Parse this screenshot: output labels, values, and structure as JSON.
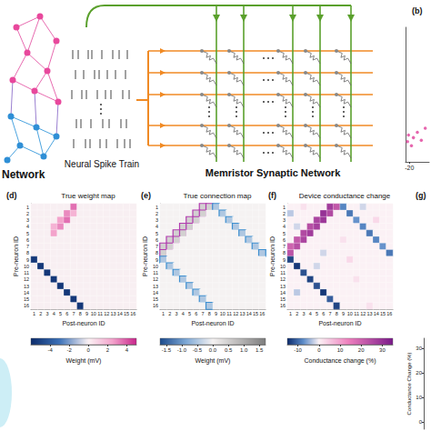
{
  "diagram": {
    "network_label": "Network",
    "spike_label": "Neural Spike Train",
    "crossbar_label": "Memristor Synaptic Network"
  },
  "chart_data": [
    {
      "type": "scatter",
      "panel": "(b)",
      "x": [
        -21,
        -20.5,
        -19,
        -18,
        -16,
        -14,
        -12
      ],
      "values": [
        0.15,
        0.2,
        0.12,
        0.18,
        0.22,
        0.16,
        0.25
      ],
      "color": "#e0409a",
      "xlim": [
        -22,
        -10
      ],
      "xticks": [
        -20
      ],
      "ylim": [
        0,
        1
      ],
      "tick_labels": "x"
    },
    {
      "type": "heatmap",
      "panel": "(d)",
      "title": "True weight map",
      "xlabel": "Post-neuron ID",
      "ylabel": "Pre-neuron ID",
      "x": [
        1,
        2,
        3,
        4,
        5,
        6,
        7,
        8,
        9,
        10,
        11,
        12,
        13,
        14,
        15,
        16
      ],
      "y": [
        1,
        2,
        3,
        4,
        5,
        6,
        7,
        8,
        9,
        10,
        11,
        12,
        13,
        14,
        15,
        16
      ],
      "values": [
        [
          0,
          0,
          0,
          0,
          0,
          0,
          3.5,
          0,
          0,
          0,
          0,
          0,
          0,
          0,
          0,
          0
        ],
        [
          0,
          0,
          0,
          0,
          0,
          3,
          2,
          0,
          0,
          0,
          0,
          0,
          0,
          0,
          0,
          0
        ],
        [
          0,
          0,
          0,
          0,
          2.5,
          3.5,
          0,
          0,
          0,
          0,
          0,
          0,
          0,
          0,
          0,
          0
        ],
        [
          0,
          0,
          0,
          2,
          3,
          0,
          0,
          0,
          0,
          0,
          0,
          0,
          0,
          0,
          0,
          0
        ],
        [
          0,
          0,
          0,
          2.5,
          0,
          0,
          0,
          0,
          0,
          0,
          0,
          0,
          0,
          0,
          0,
          0
        ],
        [
          0,
          0,
          0,
          0,
          0,
          0,
          0,
          0,
          0,
          0,
          0,
          0,
          0,
          0,
          0,
          0
        ],
        [
          0,
          0,
          0,
          0,
          0,
          0,
          0,
          0,
          0,
          0,
          0,
          0,
          0,
          0,
          0,
          0
        ],
        [
          0,
          0,
          0,
          0,
          0,
          0,
          0,
          0,
          0,
          0,
          0,
          0,
          0,
          0,
          0,
          0
        ],
        [
          -5.5,
          0,
          0,
          0,
          0,
          0,
          0,
          0,
          0,
          0,
          0,
          0,
          0,
          0,
          0,
          0
        ],
        [
          0,
          -5.5,
          0,
          0,
          0,
          0,
          0,
          0,
          0,
          0,
          0,
          0,
          0,
          0,
          0,
          0
        ],
        [
          0,
          0,
          -5.5,
          0,
          0,
          0,
          0,
          0,
          0,
          0,
          0,
          0,
          0,
          0,
          0,
          0
        ],
        [
          0,
          0,
          0,
          -5.5,
          0,
          0,
          0,
          0,
          0,
          0,
          0,
          0,
          0,
          0,
          0,
          0
        ],
        [
          0,
          0,
          0,
          0,
          -5.5,
          0,
          0,
          0,
          0,
          0,
          0,
          0,
          0,
          0,
          0,
          0
        ],
        [
          0,
          0,
          0,
          0,
          0,
          -5.5,
          0,
          0,
          0,
          0,
          0,
          0,
          0,
          0,
          0,
          0
        ],
        [
          0,
          0,
          0,
          0,
          0,
          0,
          -5.5,
          0,
          0,
          0,
          0,
          0,
          0,
          0,
          0,
          0
        ],
        [
          0,
          0,
          0,
          0,
          0,
          0,
          0,
          -5.5,
          0,
          0,
          0,
          0,
          0,
          0,
          0,
          0
        ]
      ],
      "colorbar_label": "Weight (mV)",
      "colorbar_lim": [
        -6,
        5
      ],
      "colorbar_ticks": [
        -4,
        -2,
        0,
        2,
        4
      ]
    },
    {
      "type": "heatmap",
      "panel": "(e)",
      "title": "True connection map",
      "xlabel": "Post-neuron ID",
      "ylabel": "Pre-neuron ID",
      "x": [
        1,
        2,
        3,
        4,
        5,
        6,
        7,
        8,
        9,
        10,
        11,
        12,
        13,
        14,
        15,
        16
      ],
      "y": [
        1,
        2,
        3,
        4,
        5,
        6,
        7,
        8,
        9,
        10,
        11,
        12,
        13,
        14,
        15,
        16
      ],
      "values": [
        [
          0,
          0,
          0,
          0,
          0,
          0,
          0.5,
          0.5,
          -0.5,
          0,
          0,
          0,
          0,
          0,
          0,
          0
        ],
        [
          0,
          0,
          0,
          0,
          0,
          0.5,
          0.5,
          0,
          0,
          -0.5,
          0,
          0,
          0,
          0,
          0,
          0
        ],
        [
          0,
          0,
          0,
          0,
          0.5,
          0.5,
          0,
          0,
          0,
          0,
          -0.5,
          0,
          0,
          0,
          0,
          0
        ],
        [
          0,
          0,
          0,
          0.5,
          0.5,
          0,
          0,
          0,
          0,
          0,
          0,
          -0.5,
          0,
          0,
          0,
          0
        ],
        [
          0,
          0,
          0.5,
          0.5,
          0,
          0,
          0,
          0,
          0,
          0,
          0,
          0,
          -0.5,
          0,
          0,
          0
        ],
        [
          0,
          0.5,
          0.5,
          0,
          0,
          0,
          0,
          0,
          0,
          0,
          0,
          0,
          0,
          -0.5,
          0,
          0
        ],
        [
          0.5,
          0.5,
          0,
          0,
          0,
          0,
          0,
          0,
          0,
          0,
          0,
          0,
          0,
          0,
          -0.5,
          0
        ],
        [
          0.5,
          0,
          0,
          0,
          0,
          0,
          0,
          0,
          0,
          0,
          0,
          0,
          0,
          0,
          0,
          -0.5
        ],
        [
          -0.5,
          0,
          0,
          0,
          0,
          0,
          0,
          0,
          0,
          0,
          0,
          0,
          0,
          0,
          0,
          0
        ],
        [
          0,
          -0.5,
          0,
          0,
          0,
          0,
          0,
          0,
          0,
          0,
          0,
          0,
          0,
          0,
          0,
          0
        ],
        [
          0,
          0,
          -0.5,
          0,
          0,
          0,
          0,
          0,
          0,
          0,
          0,
          0,
          0,
          0,
          0,
          0
        ],
        [
          0,
          0,
          0,
          -0.5,
          0,
          0,
          0,
          0,
          0,
          0,
          0,
          0,
          0,
          0,
          0,
          0
        ],
        [
          0,
          0,
          0,
          0,
          -0.5,
          0,
          0,
          0,
          0,
          0,
          0,
          0,
          0,
          0,
          0,
          0
        ],
        [
          0,
          0,
          0,
          0,
          0,
          -0.5,
          0,
          0,
          0,
          0,
          0,
          0,
          0,
          0,
          0,
          0
        ],
        [
          0,
          0,
          0,
          0,
          0,
          0,
          -0.5,
          0,
          0,
          0,
          0,
          0,
          0,
          0,
          0,
          0
        ],
        [
          0,
          0,
          0,
          0,
          0,
          0,
          0,
          -0.5,
          0,
          0,
          0,
          0,
          0,
          0,
          0,
          0
        ]
      ],
      "colorbar_label": "Weight (mV)",
      "colorbar_lim": [
        -1.7,
        1.7
      ],
      "colorbar_ticks": [
        -1.5,
        {
          "value": -1,
          "label": "-1.0"
        },
        -0.5,
        {
          "value": 0,
          "label": "0.0"
        },
        0.5,
        {
          "value": 1,
          "label": "1.0"
        },
        1.5
      ]
    },
    {
      "type": "heatmap",
      "panel": "(f)",
      "title": "Device conductance change",
      "xlabel": "Post-neuron ID",
      "ylabel": "Pre-neuron ID",
      "x": [
        1,
        2,
        3,
        4,
        5,
        6,
        7,
        8,
        9,
        10,
        11,
        12,
        13,
        14,
        15,
        16
      ],
      "y": [
        1,
        2,
        3,
        4,
        5,
        6,
        7,
        8,
        9,
        10,
        11,
        12,
        13,
        14,
        15,
        16
      ],
      "values": [
        [
          0,
          0,
          2,
          0,
          0,
          0,
          28,
          22,
          -8,
          0,
          0,
          -2,
          0,
          0,
          0,
          0
        ],
        [
          -3,
          0,
          0,
          0,
          0,
          30,
          25,
          0,
          0,
          -9,
          0,
          0,
          0,
          0,
          0,
          0
        ],
        [
          0,
          0,
          0,
          0,
          26,
          29,
          0,
          0,
          0,
          0,
          -7,
          0,
          0,
          3,
          0,
          0
        ],
        [
          0,
          -2,
          0,
          24,
          27,
          0,
          0,
          0,
          0,
          0,
          0,
          -8,
          0,
          0,
          0,
          0
        ],
        [
          0,
          0,
          25,
          28,
          0,
          0,
          0,
          0,
          0,
          0,
          0,
          0,
          -9,
          0,
          0,
          0
        ],
        [
          0,
          22,
          26,
          0,
          0,
          0,
          0,
          0,
          2,
          0,
          0,
          0,
          0,
          -8,
          0,
          0
        ],
        [
          20,
          24,
          0,
          0,
          0,
          0,
          0,
          0,
          0,
          0,
          0,
          0,
          0,
          0,
          -7,
          0
        ],
        [
          23,
          0,
          0,
          0,
          0,
          -2,
          0,
          0,
          0,
          0,
          0,
          0,
          0,
          0,
          0,
          -9
        ],
        [
          -13,
          0,
          0,
          0,
          0,
          0,
          0,
          0,
          0,
          3,
          0,
          0,
          0,
          0,
          0,
          0
        ],
        [
          0,
          -14,
          0,
          0,
          -2,
          0,
          0,
          0,
          0,
          0,
          0,
          0,
          0,
          0,
          0,
          0
        ],
        [
          0,
          0,
          -12,
          0,
          0,
          0,
          0,
          0,
          0,
          0,
          0,
          0,
          0,
          0,
          0,
          0
        ],
        [
          0,
          0,
          0,
          -13,
          0,
          0,
          0,
          0,
          0,
          0,
          2,
          0,
          0,
          0,
          0,
          0
        ],
        [
          0,
          0,
          0,
          0,
          -12,
          0,
          0,
          0,
          0,
          0,
          0,
          0,
          0,
          0,
          0,
          0
        ],
        [
          0,
          -3,
          0,
          0,
          0,
          -14,
          0,
          0,
          0,
          0,
          0,
          0,
          0,
          0,
          0,
          0
        ],
        [
          0,
          0,
          0,
          0,
          0,
          0,
          -11,
          0,
          0,
          0,
          0,
          0,
          0,
          0,
          0,
          0
        ],
        [
          0,
          0,
          0,
          0,
          0,
          0,
          0,
          -13,
          0,
          0,
          0,
          0,
          2,
          0,
          0,
          0
        ]
      ],
      "colorbar_label": "Conductance change (%)",
      "colorbar_lim": [
        -15,
        35
      ],
      "colorbar_ticks": [
        -10,
        0,
        10,
        20,
        30
      ]
    },
    {
      "type": "scatter",
      "panel": "(g)",
      "ylabel": "Conductance Change (%)",
      "x": [],
      "values": [],
      "ylim": [
        -3,
        34
      ],
      "yticks": [
        0,
        10,
        20,
        30
      ],
      "tick_labels": "y"
    }
  ]
}
